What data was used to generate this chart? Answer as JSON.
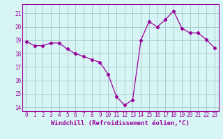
{
  "x": [
    0,
    1,
    2,
    3,
    4,
    5,
    6,
    7,
    8,
    9,
    10,
    11,
    12,
    13,
    14,
    15,
    16,
    17,
    18,
    19,
    20,
    21,
    22,
    23
  ],
  "y": [
    18.9,
    18.6,
    18.6,
    18.8,
    18.8,
    18.35,
    18.0,
    17.8,
    17.55,
    17.35,
    16.45,
    14.8,
    14.15,
    14.55,
    19.0,
    20.4,
    20.0,
    20.55,
    21.2,
    19.9,
    19.55,
    19.55,
    19.05,
    18.45
  ],
  "line_color": "#990099",
  "marker": "D",
  "marker_size": 2.2,
  "bg_color": "#d8f5f5",
  "grid_color": "#aacccc",
  "xlabel": "Windchill (Refroidissement éolien,°C)",
  "xlabel_color": "#990099",
  "ylim": [
    13.7,
    21.7
  ],
  "xlim": [
    -0.5,
    23.5
  ],
  "yticks": [
    14,
    15,
    16,
    17,
    18,
    19,
    20,
    21
  ],
  "xticks": [
    0,
    1,
    2,
    3,
    4,
    5,
    6,
    7,
    8,
    9,
    10,
    11,
    12,
    13,
    14,
    15,
    16,
    17,
    18,
    19,
    20,
    21,
    22,
    23
  ],
  "tick_fontsize": 5.5,
  "xlabel_fontsize": 6.5
}
